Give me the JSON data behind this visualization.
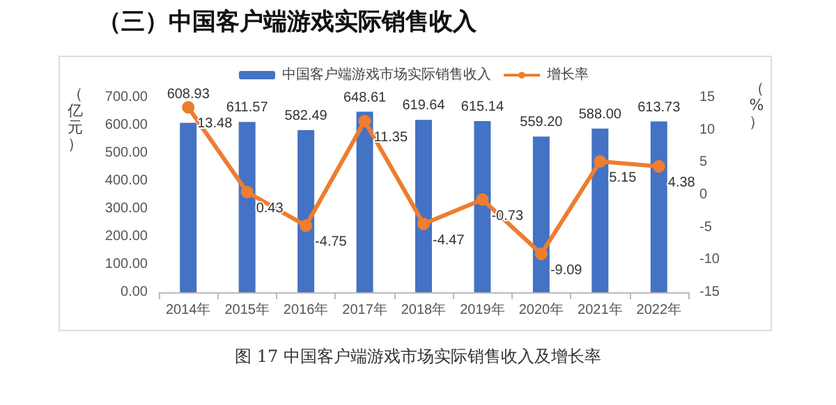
{
  "chart_data": {
    "type": "bar",
    "title": "（三）中国客户端游戏实际销售收入",
    "ylabel": "（亿元）",
    "y2label": "（%）",
    "annotations": [
      "图 17 中国客户端游戏市场实际销售收入及增长率"
    ],
    "categories": [
      "2014年",
      "2015年",
      "2016年",
      "2017年",
      "2018年",
      "2019年",
      "2020年",
      "2021年",
      "2022年"
    ],
    "series": [
      {
        "name": "中国客户端游戏市场实际销售收入",
        "color": "#4472c4",
        "values": [
          608.93,
          611.57,
          582.49,
          648.61,
          619.64,
          615.14,
          559.2,
          588.0,
          613.73
        ],
        "value_labels": [
          "608.93",
          "611.57",
          "582.49",
          "648.61",
          "619.64",
          "615.14",
          "559.20",
          "588.00",
          "613.73"
        ]
      },
      {
        "name": "增长率",
        "type": "line",
        "axis": "y2",
        "color": "#ed7d31",
        "marker": "circle",
        "values": [
          13.48,
          0.43,
          -4.75,
          11.35,
          -4.47,
          -0.73,
          -9.09,
          5.15,
          4.38
        ],
        "value_labels": [
          "13.48",
          "0.43",
          "-4.75",
          "11.35",
          "-4.47",
          "-0.73",
          "-9.09",
          "5.15",
          "4.38"
        ]
      }
    ],
    "ylim": [
      0,
      700
    ],
    "yticks": [
      {
        "value": 0,
        "label": "0.00"
      },
      {
        "value": 100,
        "label": "100.00"
      },
      {
        "value": 200,
        "label": "200.00"
      },
      {
        "value": 300,
        "label": "300.00"
      },
      {
        "value": 400,
        "label": "400.00"
      },
      {
        "value": 500,
        "label": "500.00"
      },
      {
        "value": 600,
        "label": "600.00"
      },
      {
        "value": 700,
        "label": "700.00"
      }
    ],
    "y2lim": [
      -15,
      15
    ],
    "y2ticks": [
      -15,
      -10,
      -5,
      0,
      5,
      10,
      15
    ],
    "grid": false,
    "legend": "top"
  }
}
